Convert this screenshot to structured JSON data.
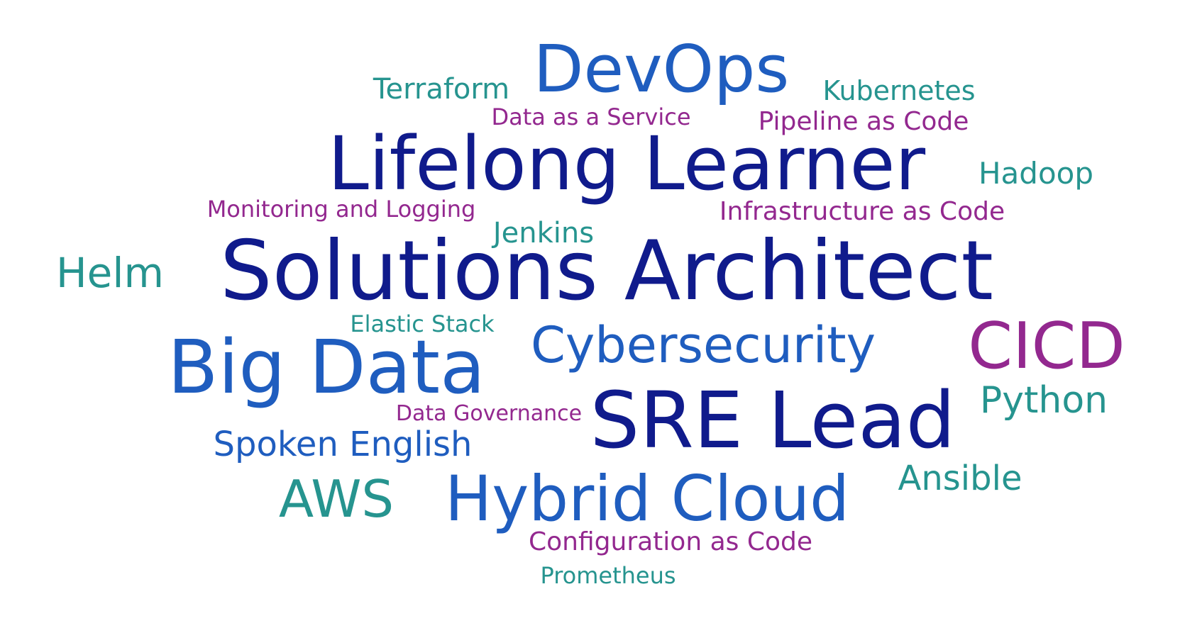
{
  "palette": {
    "dark_navy": "#101b8c",
    "royal_blue": "#1f5dbf",
    "teal": "#26948f",
    "purple": "#93288f"
  },
  "words": [
    {
      "text": "DevOps",
      "color": "royal_blue"
    },
    {
      "text": "Terraform",
      "color": "teal"
    },
    {
      "text": "Kubernetes",
      "color": "teal"
    },
    {
      "text": "Data as a Service",
      "color": "purple"
    },
    {
      "text": "Pipeline as Code",
      "color": "purple"
    },
    {
      "text": "Lifelong Learner",
      "color": "dark_navy"
    },
    {
      "text": "Hadoop",
      "color": "teal"
    },
    {
      "text": "Monitoring and Logging",
      "color": "purple"
    },
    {
      "text": "Infrastructure as Code",
      "color": "purple"
    },
    {
      "text": "Jenkins",
      "color": "teal"
    },
    {
      "text": "Helm",
      "color": "teal"
    },
    {
      "text": "Solutions Architect",
      "color": "dark_navy"
    },
    {
      "text": "Elastic Stack",
      "color": "teal"
    },
    {
      "text": "Cybersecurity",
      "color": "royal_blue"
    },
    {
      "text": "CICD",
      "color": "purple"
    },
    {
      "text": "Big Data",
      "color": "royal_blue"
    },
    {
      "text": "Python",
      "color": "teal"
    },
    {
      "text": "Data Governance",
      "color": "purple"
    },
    {
      "text": "SRE Lead",
      "color": "dark_navy"
    },
    {
      "text": "Spoken English",
      "color": "royal_blue"
    },
    {
      "text": "Ansible",
      "color": "teal"
    },
    {
      "text": "AWS",
      "color": "teal"
    },
    {
      "text": "Hybrid Cloud",
      "color": "royal_blue"
    },
    {
      "text": "Configuration as Code",
      "color": "purple"
    },
    {
      "text": "Prometheus",
      "color": "teal"
    }
  ]
}
